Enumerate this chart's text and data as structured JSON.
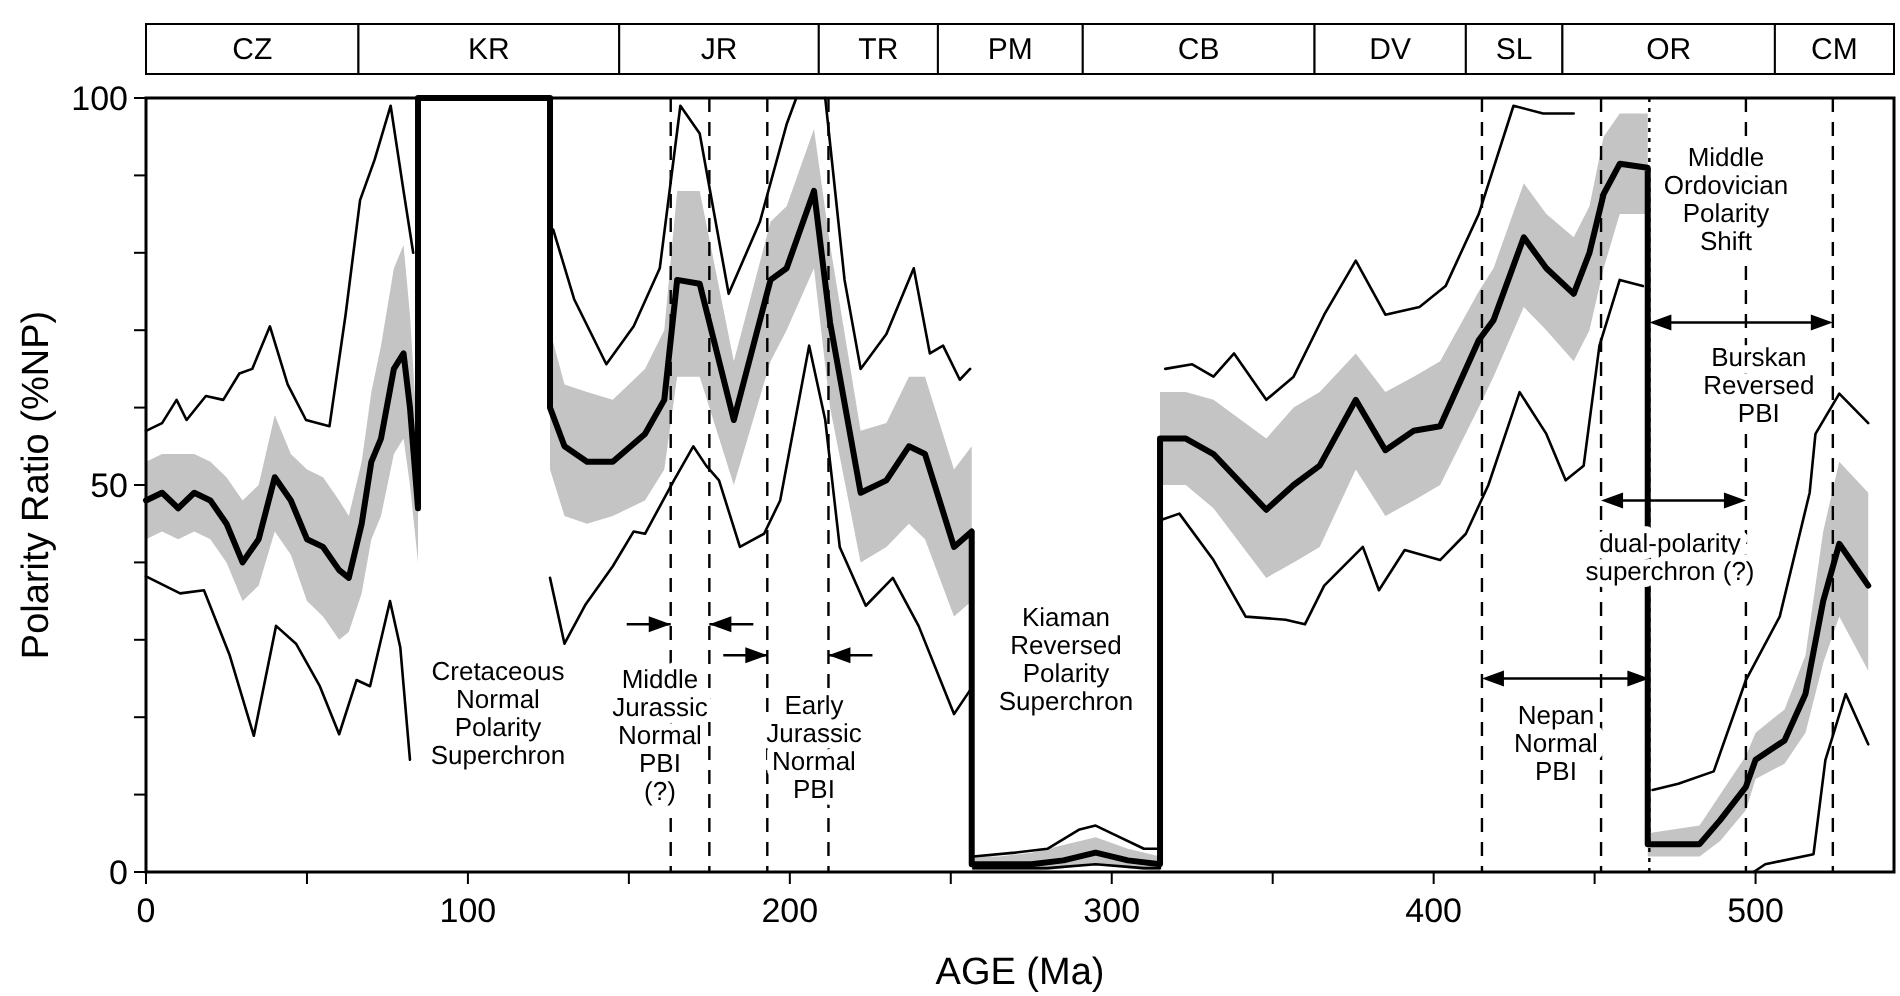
{
  "chart_data": [
    {
      "type": "bar",
      "orientation": "horizontal",
      "stacked": true,
      "categories": [
        null
      ],
      "xlim": [
        0,
        543
      ],
      "series": [
        {
          "name": "CZ",
          "color": "#ffffff",
          "values": [
            66
          ]
        },
        {
          "name": "KR",
          "color": "#ffffff",
          "values": [
            81
          ]
        },
        {
          "name": "JR",
          "color": "#ffffff",
          "values": [
            62
          ]
        },
        {
          "name": "TR",
          "color": "#ffffff",
          "values": [
            37
          ]
        },
        {
          "name": "PM",
          "color": "#ffffff",
          "values": [
            45
          ]
        },
        {
          "name": "CB",
          "color": "#ffffff",
          "values": [
            72
          ]
        },
        {
          "name": "DV",
          "color": "#ffffff",
          "values": [
            47
          ]
        },
        {
          "name": "SL",
          "color": "#ffffff",
          "values": [
            30
          ]
        },
        {
          "name": "OR",
          "color": "#ffffff",
          "values": [
            66
          ]
        },
        {
          "name": "CM",
          "color": "#ffffff",
          "values": [
            37
          ]
        }
      ]
    },
    {
      "type": "line",
      "xlabel": "AGE  (Ma)",
      "ylabel": "Polarity Ratio  (%NP)",
      "xlim": [
        0,
        543
      ],
      "ylim": [
        0,
        100
      ],
      "xticks": [
        0,
        {
          "value": 50,
          "label": null
        },
        100,
        {
          "value": 150,
          "label": null
        },
        200,
        {
          "value": 250,
          "label": null
        },
        300,
        {
          "value": 350,
          "label": null
        },
        400,
        {
          "value": 450,
          "label": null
        },
        500
      ],
      "yticks": [
        0,
        {
          "value": 10,
          "label": null
        },
        {
          "value": 20,
          "label": null
        },
        {
          "value": 30,
          "label": null
        },
        {
          "value": 40,
          "label": null
        },
        50,
        {
          "value": 60,
          "label": null
        },
        {
          "value": 70,
          "label": null
        },
        {
          "value": 80,
          "label": null
        },
        {
          "value": 90,
          "label": null
        },
        100
      ],
      "series": [
        {
          "color": "#000000",
          "line_style": "solid",
          "x": [
            0,
            5,
            10,
            15,
            20,
            25,
            30,
            35,
            40,
            45,
            50,
            55,
            60,
            63,
            67,
            70,
            73,
            77,
            80,
            82,
            84.5,
            84.5,
            125.5,
            125.5,
            130,
            137,
            145,
            155,
            161,
            165,
            172,
            182.6,
            194,
            199,
            207.5,
            212.5,
            222,
            230,
            237,
            242,
            251,
            256.5,
            256.5,
            265,
            275,
            285,
            295,
            305,
            315,
            315,
            323,
            331.6,
            348,
            356.5,
            364.6,
            375.8,
            385,
            393.8,
            402,
            414,
            418.6,
            428,
            435,
            443.5,
            448.4,
            452.8,
            457.8,
            466.5,
            466.5,
            482.6,
            489,
            497,
            500,
            509,
            515.5,
            521,
            526,
            535
          ],
          "values": [
            48,
            49,
            47,
            49,
            48,
            45,
            40,
            43,
            51,
            48,
            43,
            42,
            39,
            38,
            45,
            53,
            56,
            65,
            67,
            60,
            47,
            100,
            100,
            60,
            55,
            53,
            53,
            56.6,
            61,
            76.5,
            76,
            58.4,
            76.5,
            78,
            88,
            71,
            49,
            50.6,
            55,
            54,
            42,
            44,
            1,
            1,
            1,
            1.5,
            2.5,
            1.5,
            1,
            56,
            56,
            54,
            46.8,
            50,
            52.5,
            61,
            54.5,
            57,
            57.6,
            68.7,
            71.3,
            82,
            78,
            74.7,
            80,
            87.6,
            91.5,
            91,
            3.6,
            3.6,
            6.7,
            11,
            14.5,
            17,
            23,
            35,
            42.4,
            37
          ],
          "lower": [
            43,
            44,
            43,
            44,
            43,
            40,
            35,
            37,
            44,
            41,
            35,
            33,
            30,
            31,
            36,
            43,
            46,
            54,
            56,
            50,
            40,
            null,
            null,
            52,
            46,
            45,
            46,
            48,
            52,
            64,
            64,
            50,
            66,
            70,
            78,
            60,
            40,
            42,
            45,
            43,
            33,
            35,
            0,
            0,
            0,
            0.5,
            1,
            0.5,
            0,
            50,
            50,
            47,
            38,
            40,
            42,
            52,
            46,
            48,
            50,
            60,
            64,
            73,
            70,
            66,
            70,
            78,
            85,
            85,
            2,
            2,
            4,
            8,
            12,
            14,
            18,
            27,
            33,
            26
          ],
          "upper": [
            53,
            54,
            54,
            54,
            53,
            51,
            48,
            50,
            59,
            54,
            52,
            51,
            48,
            46,
            53,
            62,
            68,
            78,
            81,
            72,
            55,
            null,
            null,
            70,
            63,
            62,
            61,
            65,
            70,
            88,
            88,
            66,
            84,
            86,
            96,
            81,
            57,
            58,
            64,
            64,
            52,
            55,
            2,
            2,
            2.5,
            3.5,
            4.5,
            3,
            2,
            62,
            62,
            61,
            56,
            60,
            62,
            67,
            62,
            64,
            66,
            75,
            78,
            89,
            85,
            82,
            86,
            95,
            98,
            98,
            5,
            6,
            10,
            15,
            18,
            21,
            28,
            44,
            53,
            49
          ]
        },
        {
          "color": "#000000",
          "x": [
            0,
            5,
            9.5,
            12.6,
            18.6,
            24,
            29,
            33,
            38.5,
            44,
            49.7,
            57,
            62,
            66.5,
            71,
            76,
            80,
            83,
            100,
            126.5,
            133,
            143,
            151.5,
            159.6,
            166,
            172,
            181,
            190.7,
            199,
            202,
            206,
            211,
            217,
            222,
            230,
            238.5,
            243.5,
            247.6,
            252.8,
            256,
            256.5,
            257,
            270,
            280,
            290,
            295,
            300,
            310,
            315,
            316,
            316.6,
            325,
            331.6,
            338,
            348,
            356.5,
            366,
            375.8,
            385,
            395.6,
            403.7,
            414,
            424.8,
            434,
            443.5,
            455,
            468,
            476,
            487,
            497,
            507.5,
            516.8,
            518.6,
            526,
            535
          ],
          "values": [
            57,
            58,
            61,
            58.4,
            61.5,
            61,
            64.4,
            65,
            70.5,
            63,
            58.4,
            57.6,
            72,
            86.8,
            92,
            99,
            88,
            80,
            null,
            83,
            74,
            65.6,
            70.5,
            78,
            99,
            95.4,
            74.7,
            84,
            96.6,
            100,
            null,
            100,
            76.5,
            65,
            69.5,
            78,
            67,
            68,
            63.6,
            65,
            null,
            2,
            2.5,
            3,
            5.5,
            6,
            5,
            3,
            3,
            null,
            65,
            65.6,
            64,
            67,
            61,
            64,
            72,
            79,
            72,
            73,
            75.7,
            85,
            99,
            98,
            98,
            null,
            10.6,
            11.4,
            13,
            24.8,
            33,
            49,
            56.6,
            61.8,
            58
          ]
        },
        {
          "color": "#000000",
          "x": [
            0,
            10.6,
            18,
            26,
            33.5,
            40.4,
            46.6,
            54,
            60,
            65.4,
            69.6,
            75.8,
            79,
            82,
            100,
            125.5,
            130,
            136.6,
            145,
            151.5,
            155,
            164,
            170,
            174,
            178,
            184.5,
            192,
            197,
            206,
            211,
            215.5,
            223.6,
            232,
            240,
            251,
            256,
            256.5,
            257,
            280,
            295,
            310,
            315,
            315.2,
            315.5,
            321,
            331.6,
            341.6,
            354,
            360,
            366,
            378,
            383,
            391,
            402,
            410,
            417,
            426.7,
            435,
            441,
            446.6,
            451.5,
            457.8,
            465,
            480,
            499.4,
            503,
            518,
            521.7,
            528,
            535
          ],
          "values": [
            38.2,
            36,
            36.4,
            28,
            17.6,
            31.8,
            29.5,
            24,
            17.8,
            24.8,
            24,
            35,
            29,
            14.5,
            null,
            38,
            29.5,
            34.6,
            39.5,
            44,
            43.7,
            50.6,
            55,
            52.5,
            50.6,
            42,
            43.7,
            48,
            68,
            58.4,
            42,
            34.4,
            38,
            31.8,
            20.4,
            23.5,
            null,
            0.5,
            0.5,
            1,
            0.5,
            0.5,
            null,
            45.5,
            46.3,
            40.3,
            33,
            32.6,
            32,
            37,
            42,
            36.4,
            41.6,
            40.3,
            43.7,
            50,
            62,
            56.6,
            50.6,
            52.5,
            68,
            76.5,
            75.7,
            null,
            0,
            1,
            2.3,
            14.5,
            23,
            16.5
          ]
        }
      ],
      "ref_lines": [
        {
          "axis": "x",
          "value": 163,
          "line_style": "dashed"
        },
        {
          "axis": "x",
          "value": 175,
          "line_style": "dashed"
        },
        {
          "axis": "x",
          "value": 193,
          "line_style": "dashed"
        },
        {
          "axis": "x",
          "value": 212,
          "line_style": "dashed"
        },
        {
          "axis": "x",
          "value": 415,
          "line_style": "dashed"
        },
        {
          "axis": "x",
          "value": 452,
          "line_style": "dashed"
        },
        {
          "axis": "x",
          "value": 467,
          "line_style": "dotted"
        },
        {
          "axis": "x",
          "value": 497,
          "line_style": "dashed"
        },
        {
          "axis": "x",
          "value": 524,
          "line_style": "dashed"
        }
      ],
      "annotations": [
        "Cretaceous\nNormal\nPolarity\nSuperchron",
        "Middle\nJurassic\nNormal\nPBI\n(?)",
        "Early\nJurassic\nNormal\nPBI",
        "Kiaman\nReversed\nPolarity\nSuperchron",
        "Nepan\nNormal\nPBI",
        "dual-polarity\nsuperchron (?)",
        {
          "text": "Burskan\nReversed\nPBI",
          "x": 524,
          "y": 71
        },
        "Middle\nOrdovician\nPolarity\nShift"
      ]
    }
  ]
}
